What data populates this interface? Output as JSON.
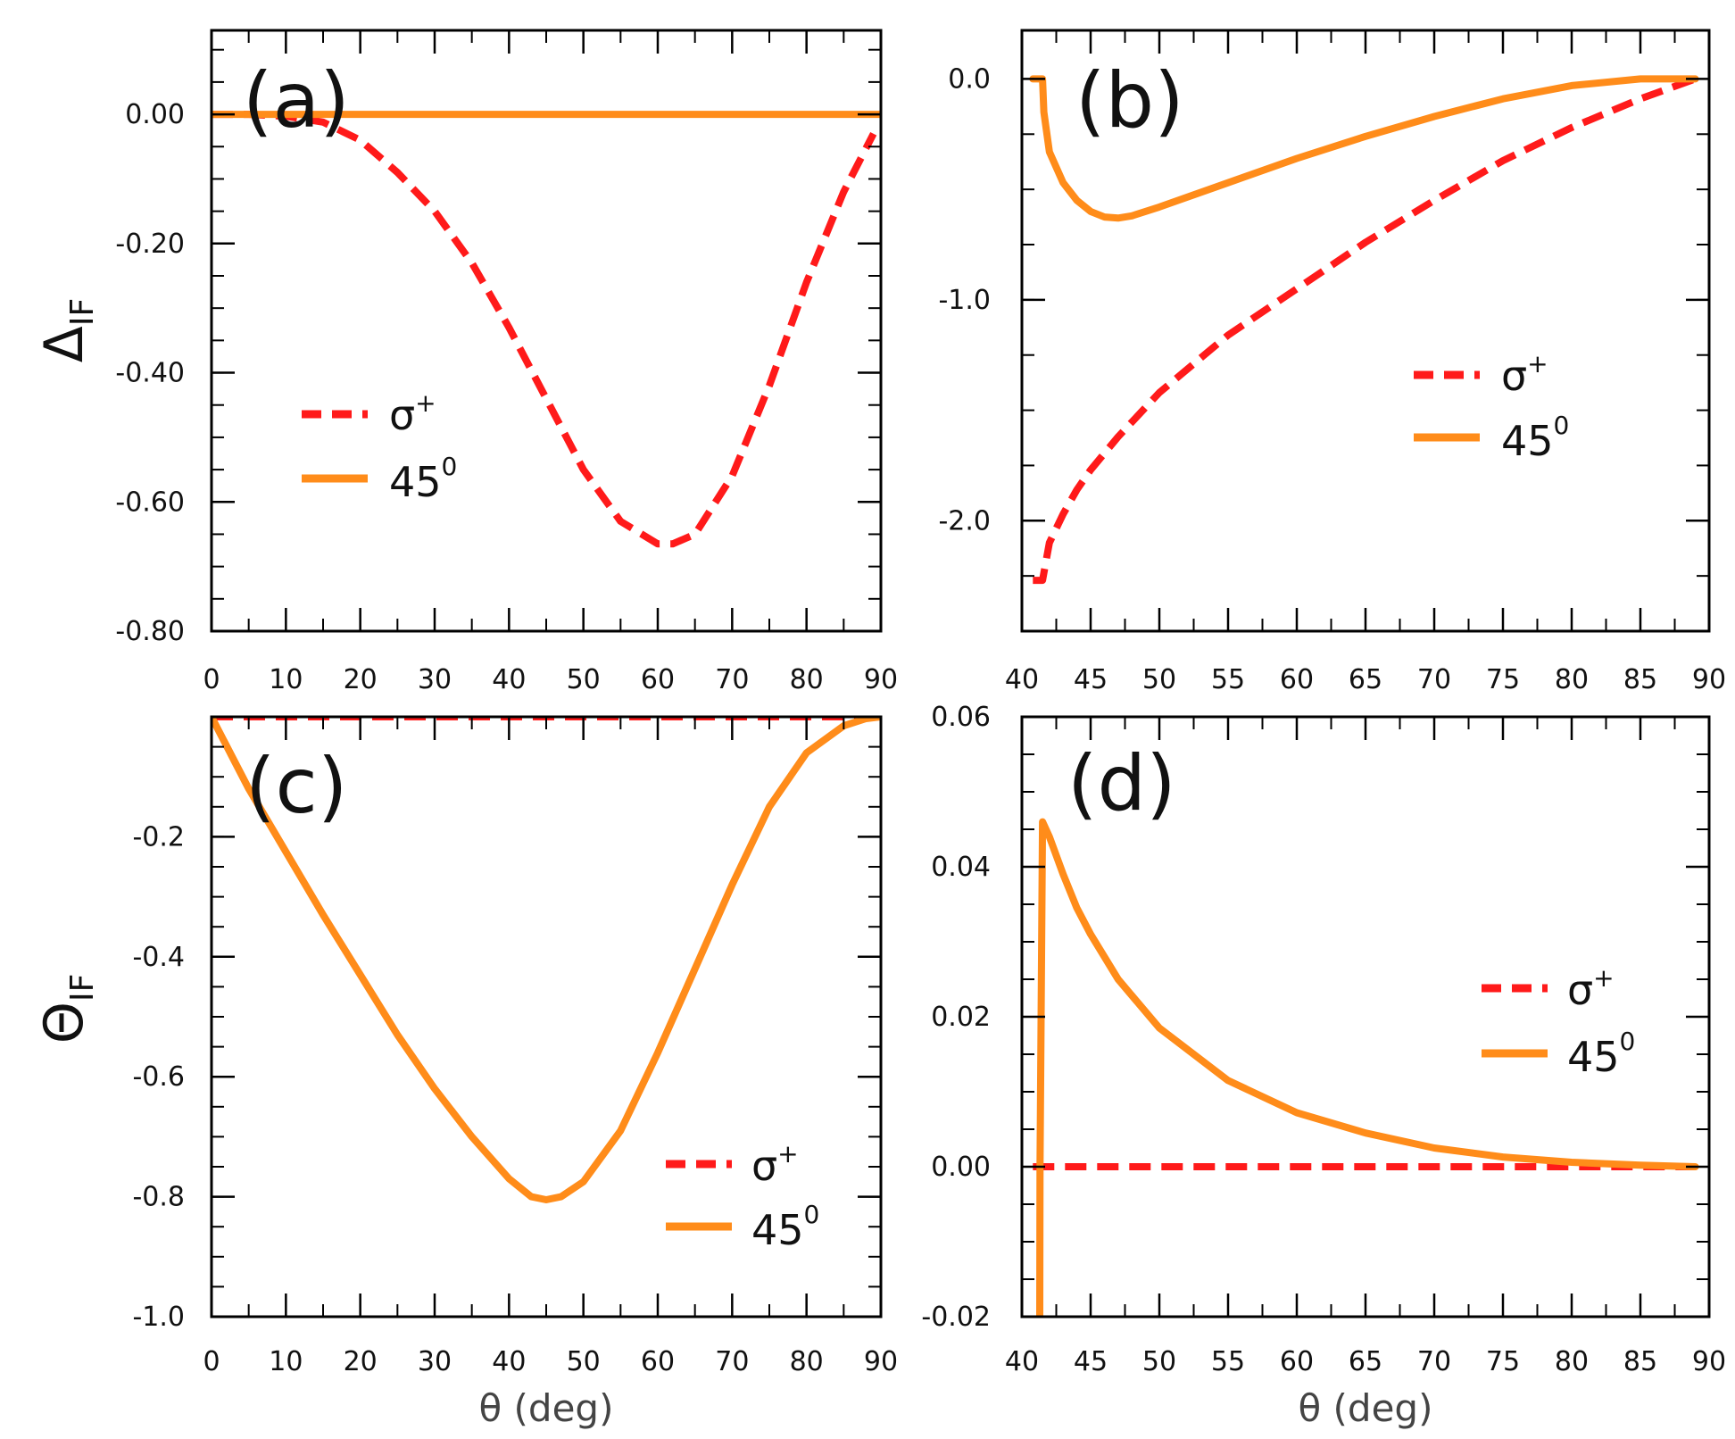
{
  "colors": {
    "sigma_plus": "#ff1a1a",
    "deg45": "#ff8c1a",
    "frame": "#000000"
  },
  "chart_data": [
    {
      "id": "a",
      "type": "line",
      "panel_label": "(a)",
      "ylabel_main": "Δ",
      "ylabel_sub": "IF",
      "xlabel": "",
      "xlim": [
        0,
        90
      ],
      "ylim": [
        -0.8,
        0.13
      ],
      "xticks": [
        0,
        10,
        20,
        30,
        40,
        50,
        60,
        70,
        80,
        90
      ],
      "xtick_labels": [
        "0",
        "10",
        "20",
        "30",
        "40",
        "50",
        "60",
        "70",
        "80",
        "90"
      ],
      "yticks": [
        0.0,
        -0.2,
        -0.4,
        -0.6,
        -0.8
      ],
      "ytick_labels": [
        "0.00",
        "-0.20",
        "-0.40",
        "-0.60",
        "-0.80"
      ],
      "legend_position": "center-left",
      "series": [
        {
          "name": "σ",
          "name_sup": "+",
          "style": "dashed",
          "color_key": "sigma_plus",
          "x": [
            0,
            5,
            10,
            15,
            20,
            25,
            30,
            35,
            40,
            45,
            50,
            55,
            60,
            62,
            65,
            70,
            75,
            80,
            85,
            89
          ],
          "y": [
            0.0,
            0.0,
            -0.003,
            -0.012,
            -0.04,
            -0.09,
            -0.15,
            -0.23,
            -0.33,
            -0.44,
            -0.55,
            -0.63,
            -0.665,
            -0.665,
            -0.65,
            -0.56,
            -0.42,
            -0.26,
            -0.12,
            -0.03
          ]
        },
        {
          "name": "45",
          "name_sup": "0",
          "style": "solid",
          "color_key": "deg45",
          "x": [
            0,
            90
          ],
          "y": [
            0.0,
            0.0
          ]
        }
      ]
    },
    {
      "id": "b",
      "type": "line",
      "panel_label": "(b)",
      "ylabel_main": "",
      "ylabel_sub": "",
      "xlabel": "",
      "xlim": [
        40,
        90
      ],
      "ylim": [
        -2.5,
        0.22
      ],
      "xticks": [
        40,
        45,
        50,
        55,
        60,
        65,
        70,
        75,
        80,
        85,
        90
      ],
      "xtick_labels": [
        "40",
        "45",
        "50",
        "55",
        "60",
        "65",
        "70",
        "75",
        "80",
        "85",
        "90"
      ],
      "yticks": [
        0.0,
        -1.0,
        -2.0
      ],
      "ytick_labels": [
        "0.0",
        "-1.0",
        "-2.0"
      ],
      "legend_position": "right",
      "series": [
        {
          "name": "σ",
          "name_sup": "+",
          "style": "dashed",
          "color_key": "sigma_plus",
          "x": [
            40.8,
            41.5,
            42,
            43,
            44,
            45,
            47,
            50,
            55,
            60,
            65,
            70,
            75,
            80,
            85,
            89
          ],
          "y": [
            -2.27,
            -2.27,
            -2.1,
            -1.97,
            -1.86,
            -1.77,
            -1.62,
            -1.42,
            -1.16,
            -0.95,
            -0.74,
            -0.55,
            -0.37,
            -0.22,
            -0.09,
            0.0
          ]
        },
        {
          "name": "45",
          "name_sup": "0",
          "style": "solid",
          "color_key": "deg45",
          "x": [
            40.8,
            41.5,
            41.6,
            42,
            43,
            44,
            45,
            46,
            47,
            48,
            50,
            55,
            60,
            65,
            70,
            75,
            80,
            85,
            89
          ],
          "y": [
            0.0,
            0.0,
            -0.15,
            -0.33,
            -0.47,
            -0.55,
            -0.6,
            -0.625,
            -0.63,
            -0.62,
            -0.58,
            -0.47,
            -0.36,
            -0.26,
            -0.17,
            -0.09,
            -0.03,
            0.0,
            0.0
          ]
        }
      ]
    },
    {
      "id": "c",
      "type": "line",
      "panel_label": "(c)",
      "ylabel_main": "Θ",
      "ylabel_sub": "IF",
      "xlabel": "θ (deg)",
      "xlim": [
        0,
        90
      ],
      "ylim": [
        -1.0,
        0.0
      ],
      "xticks": [
        0,
        10,
        20,
        30,
        40,
        50,
        60,
        70,
        80,
        90
      ],
      "xtick_labels": [
        "0",
        "10",
        "20",
        "30",
        "40",
        "50",
        "60",
        "70",
        "80",
        "90"
      ],
      "yticks": [
        -0.2,
        -0.4,
        -0.6,
        -0.8,
        -1.0
      ],
      "ytick_labels": [
        "-0.2",
        "-0.4",
        "-0.6",
        "-0.8",
        "-1.0"
      ],
      "legend_position": "bottom-right",
      "series": [
        {
          "name": "σ",
          "name_sup": "+",
          "style": "dashed",
          "color_key": "sigma_plus",
          "x": [
            0,
            90
          ],
          "y": [
            0.0,
            0.0
          ]
        },
        {
          "name": "45",
          "name_sup": "0",
          "style": "solid",
          "color_key": "deg45",
          "x": [
            0,
            5,
            10,
            15,
            20,
            25,
            30,
            35,
            40,
            43,
            45,
            47,
            50,
            55,
            60,
            65,
            70,
            75,
            80,
            85,
            88,
            90
          ],
          "y": [
            0.0,
            -0.12,
            -0.225,
            -0.33,
            -0.43,
            -0.53,
            -0.62,
            -0.7,
            -0.77,
            -0.8,
            -0.805,
            -0.8,
            -0.775,
            -0.69,
            -0.56,
            -0.42,
            -0.28,
            -0.15,
            -0.06,
            -0.015,
            -0.003,
            0.0
          ]
        }
      ]
    },
    {
      "id": "d",
      "type": "line",
      "panel_label": "(d)",
      "ylabel_main": "",
      "ylabel_sub": "",
      "xlabel": "θ (deg)",
      "xlim": [
        40,
        90
      ],
      "ylim": [
        -0.02,
        0.06
      ],
      "xticks": [
        40,
        45,
        50,
        55,
        60,
        65,
        70,
        75,
        80,
        85,
        90
      ],
      "xtick_labels": [
        "40",
        "45",
        "50",
        "55",
        "60",
        "65",
        "70",
        "75",
        "80",
        "85",
        "90"
      ],
      "yticks": [
        0.06,
        0.04,
        0.02,
        0.0,
        -0.02
      ],
      "ytick_labels": [
        "0.06",
        "0.04",
        "0.02",
        "0.00",
        "-0.02"
      ],
      "legend_position": "right",
      "series": [
        {
          "name": "σ",
          "name_sup": "+",
          "style": "dashed",
          "color_key": "sigma_plus",
          "x": [
            40.8,
            89
          ],
          "y": [
            0.0,
            0.0
          ]
        },
        {
          "name": "45",
          "name_sup": "0",
          "style": "solid",
          "color_key": "deg45",
          "x": [
            41.3,
            41.32,
            41.5,
            42,
            43,
            44,
            45,
            47,
            50,
            55,
            60,
            65,
            70,
            75,
            80,
            85,
            89
          ],
          "y": [
            -0.02,
            0.0,
            0.046,
            0.044,
            0.039,
            0.0345,
            0.031,
            0.025,
            0.0185,
            0.0115,
            0.0072,
            0.0045,
            0.0025,
            0.0013,
            0.0006,
            0.0002,
            0.0
          ]
        }
      ]
    }
  ]
}
